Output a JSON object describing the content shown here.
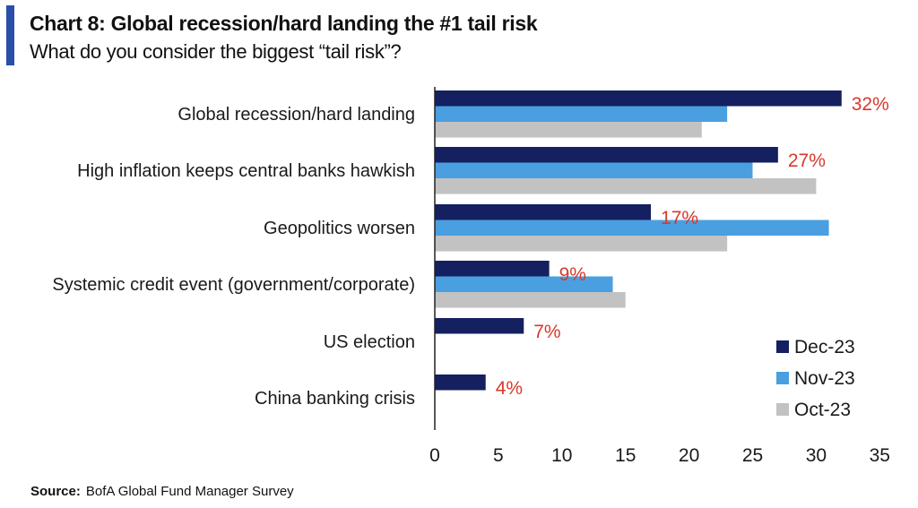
{
  "header": {
    "title": "Chart 8: Global recession/hard landing the #1 tail risk",
    "subtitle": "What do you consider the biggest “tail risk”?",
    "accent_color": "#2a4fa8"
  },
  "source": {
    "label": "Source:",
    "text": "BofA Global Fund Manager Survey"
  },
  "chart_data": {
    "type": "bar",
    "orientation": "horizontal",
    "categories": [
      "Global recession/hard landing",
      "High inflation keeps central banks hawkish",
      "Geopolitics worsen",
      "Systemic credit event (government/corporate)",
      "US election",
      "China banking crisis"
    ],
    "series": [
      {
        "name": "Dec-23",
        "color": "#14205f",
        "values": [
          32,
          27,
          17,
          9,
          7,
          4
        ]
      },
      {
        "name": "Nov-23",
        "color": "#4a9fe0",
        "values": [
          23,
          25,
          31,
          14,
          null,
          null
        ]
      },
      {
        "name": "Oct-23",
        "color": "#c2c2c2",
        "values": [
          21,
          30,
          23,
          15,
          null,
          null
        ]
      }
    ],
    "data_labels": [
      "32%",
      "27%",
      "17%",
      "9%",
      "7%",
      "4%"
    ],
    "data_label_color": "#d9382b",
    "xticks": [
      "0",
      "5",
      "10",
      "15",
      "20",
      "25",
      "30",
      "35"
    ],
    "xlim": [
      0,
      35
    ],
    "grid": false,
    "legend_position": "bottom-right"
  }
}
